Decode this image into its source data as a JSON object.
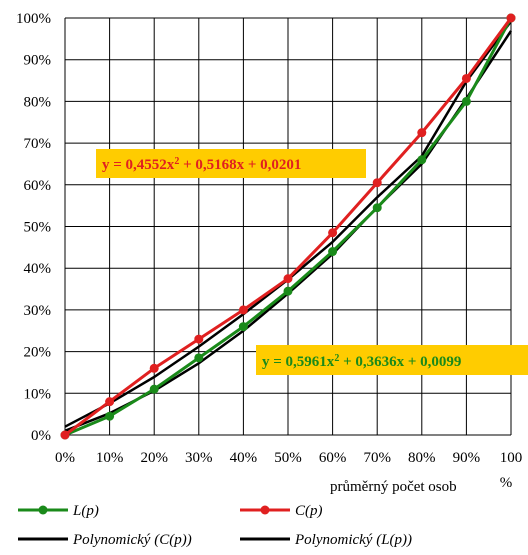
{
  "chart_data": {
    "type": "line",
    "xlabel": "průměrný počet osob",
    "x_unit": "%",
    "x_ticks": [
      "0%",
      "10%",
      "20%",
      "30%",
      "40%",
      "50%",
      "60%",
      "70%",
      "80%",
      "90%",
      "100"
    ],
    "y_ticks": [
      "0%",
      "10%",
      "20%",
      "30%",
      "40%",
      "50%",
      "60%",
      "70%",
      "80%",
      "90%",
      "100%"
    ],
    "xlim": [
      0,
      100
    ],
    "ylim": [
      0,
      100
    ],
    "grid": true,
    "x": [
      0,
      10,
      20,
      30,
      40,
      50,
      60,
      70,
      80,
      90,
      100
    ],
    "series": [
      {
        "name": "L(p)",
        "color": "#1a8a1a",
        "marker": "circle",
        "values": [
          0,
          4.5,
          11,
          18.5,
          26,
          34.5,
          44,
          54.5,
          66,
          80,
          100
        ]
      },
      {
        "name": "C(p)",
        "color": "#e02020",
        "marker": "circle",
        "values": [
          0,
          8,
          16,
          23,
          30,
          37.5,
          48.5,
          60.5,
          72.5,
          85.5,
          100
        ]
      },
      {
        "name": "Polynomický (C(p))",
        "color": "#000000",
        "marker": "none",
        "values": [
          2.0,
          7.6,
          13.9,
          21.2,
          29.0,
          37.3,
          46.3,
          57.0,
          66.9,
          84.8,
          99.2
        ]
      },
      {
        "name": "Polynomický (L(p))",
        "color": "#000000",
        "marker": "none",
        "values": [
          1.0,
          5.2,
          10.6,
          17.2,
          25.0,
          33.9,
          43.4,
          54.6,
          65.0,
          80.7,
          96.9
        ]
      }
    ],
    "annotations": [
      {
        "text": "y = 0,4552x² + 0,5168x + 0,0201",
        "color": "#e02020",
        "background": "#ffcc00"
      },
      {
        "text": "y = 0,5961x² + 0,3636x + 0,0099",
        "color": "#1a8a1a",
        "background": "#ffcc00"
      }
    ],
    "legend_position": "bottom"
  }
}
